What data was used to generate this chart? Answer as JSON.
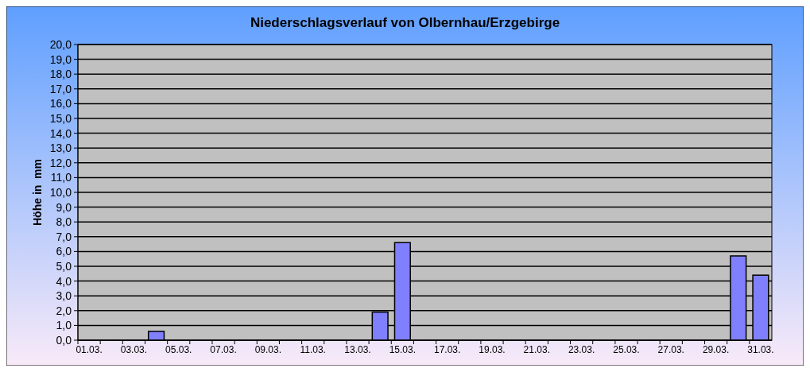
{
  "chart_data": {
    "type": "bar",
    "title": "Niederschlagsverlauf von Olbernhau/Erzgebirge",
    "ylabel": "Höhe in  mm",
    "categories": [
      "01.03.",
      null,
      "03.03.",
      null,
      "05.03.",
      null,
      "07.03.",
      null,
      "09.03.",
      null,
      "11.03.",
      null,
      "13.03.",
      null,
      "15.03.",
      null,
      "17.03.",
      null,
      "19.03.",
      null,
      "21.03.",
      null,
      "23.03.",
      null,
      "25.03.",
      null,
      "27.03.",
      null,
      "29.03.",
      null,
      "31.03."
    ],
    "values": [
      0,
      0,
      0,
      0.6,
      0,
      0,
      0,
      0,
      0,
      0,
      0,
      0,
      0,
      1.9,
      6.6,
      0,
      0,
      0,
      0,
      0,
      0,
      0,
      0,
      0,
      0,
      0,
      0,
      0,
      0,
      5.7,
      4.4
    ],
    "color": "#8080ff",
    "ylim": [
      0,
      20
    ],
    "yticks": [
      {
        "value": 0,
        "label": "0,0"
      },
      {
        "value": 1,
        "label": "1,0"
      },
      {
        "value": 2,
        "label": "2,0"
      },
      {
        "value": 3,
        "label": "3,0"
      },
      {
        "value": 4,
        "label": "4,0"
      },
      {
        "value": 5,
        "label": "5,0"
      },
      {
        "value": 6,
        "label": "6,0"
      },
      {
        "value": 7,
        "label": "7,0"
      },
      {
        "value": 8,
        "label": "8,0"
      },
      {
        "value": 9,
        "label": "9,0"
      },
      {
        "value": 10,
        "label": "10,0"
      },
      {
        "value": 11,
        "label": "11,0"
      },
      {
        "value": 12,
        "label": "12,0"
      },
      {
        "value": 13,
        "label": "13,0"
      },
      {
        "value": 14,
        "label": "14,0"
      },
      {
        "value": 15,
        "label": "15,0"
      },
      {
        "value": 16,
        "label": "16,0"
      },
      {
        "value": 17,
        "label": "17,0"
      },
      {
        "value": 18,
        "label": "18,0"
      },
      {
        "value": 19,
        "label": "19,0"
      },
      {
        "value": 20,
        "label": "20,0"
      }
    ],
    "grid": "y"
  }
}
